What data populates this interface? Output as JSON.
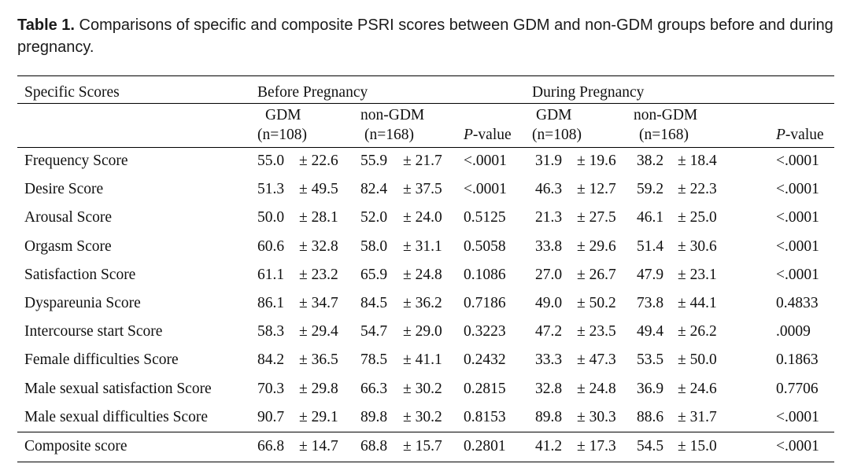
{
  "caption": {
    "label": "Table 1.",
    "text": " Comparisons of specific and composite PSRI scores between GDM and non-GDM groups before and during pregnancy."
  },
  "header": {
    "specific_scores": "Specific Scores",
    "before": "Before Pregnancy",
    "during": "During Pregnancy",
    "gdm": "GDM",
    "non_gdm": "non-GDM",
    "n_gdm": "(n=108)",
    "n_non_gdm": "(n=168)",
    "p_italic": "P",
    "p_rest": "-value"
  },
  "rows": [
    {
      "label": "Frequency Score",
      "b_gdm": "55.0",
      "b_gdm_sd": "± 22.6",
      "b_non": "55.9",
      "b_non_sd": "± 21.7",
      "b_p": "<.0001",
      "d_gdm": "31.9",
      "d_gdm_sd": "± 19.6",
      "d_non": "38.2",
      "d_non_sd": "± 18.4",
      "d_p": "<.0001"
    },
    {
      "label": "Desire  Score",
      "b_gdm": "51.3",
      "b_gdm_sd": "± 49.5",
      "b_non": "82.4",
      "b_non_sd": "± 37.5",
      "b_p": "<.0001",
      "d_gdm": "46.3",
      "d_gdm_sd": "± 12.7",
      "d_non": "59.2",
      "d_non_sd": "± 22.3",
      "d_p": "<.0001"
    },
    {
      "label": "Arousal Score",
      "b_gdm": "50.0",
      "b_gdm_sd": "± 28.1",
      "b_non": "52.0",
      "b_non_sd": "± 24.0",
      "b_p": "0.5125",
      "d_gdm": "21.3",
      "d_gdm_sd": "± 27.5",
      "d_non": "46.1",
      "d_non_sd": "± 25.0",
      "d_p": "<.0001"
    },
    {
      "label": "Orgasm Score",
      "b_gdm": "60.6",
      "b_gdm_sd": "± 32.8",
      "b_non": "58.0",
      "b_non_sd": "± 31.1",
      "b_p": "0.5058",
      "d_gdm": "33.8",
      "d_gdm_sd": "± 29.6",
      "d_non": "51.4",
      "d_non_sd": "± 30.6",
      "d_p": "<.0001"
    },
    {
      "label": "Satisfaction  Score",
      "b_gdm": "61.1",
      "b_gdm_sd": "± 23.2",
      "b_non": "65.9",
      "b_non_sd": "± 24.8",
      "b_p": "0.1086",
      "d_gdm": "27.0",
      "d_gdm_sd": "± 26.7",
      "d_non": "47.9",
      "d_non_sd": "± 23.1",
      "d_p": "<.0001"
    },
    {
      "label": "Dyspareunia  Score",
      "b_gdm": "86.1",
      "b_gdm_sd": "± 34.7",
      "b_non": "84.5",
      "b_non_sd": "± 36.2",
      "b_p": "0.7186",
      "d_gdm": "49.0",
      "d_gdm_sd": "± 50.2",
      "d_non": "73.8",
      "d_non_sd": "± 44.1",
      "d_p": "0.4833"
    },
    {
      "label": "Intercourse start  Score",
      "b_gdm": "58.3",
      "b_gdm_sd": "± 29.4",
      "b_non": "54.7",
      "b_non_sd": "± 29.0",
      "b_p": "0.3223",
      "d_gdm": "47.2",
      "d_gdm_sd": "± 23.5",
      "d_non": "49.4",
      "d_non_sd": "± 26.2",
      "d_p": ".0009"
    },
    {
      "label": "Female difficulties Score",
      "b_gdm": "84.2",
      "b_gdm_sd": "± 36.5",
      "b_non": "78.5",
      "b_non_sd": "± 41.1",
      "b_p": "0.2432",
      "d_gdm": "33.3",
      "d_gdm_sd": "± 47.3",
      "d_non": "53.5",
      "d_non_sd": "± 50.0",
      "d_p": "0.1863"
    },
    {
      "label": "Male sexual satisfaction Score",
      "b_gdm": "70.3",
      "b_gdm_sd": "± 29.8",
      "b_non": "66.3",
      "b_non_sd": "± 30.2",
      "b_p": "0.2815",
      "d_gdm": "32.8",
      "d_gdm_sd": "± 24.8",
      "d_non": "36.9",
      "d_non_sd": "± 24.6",
      "d_p": "0.7706"
    },
    {
      "label": "Male sexual difficulties Score",
      "b_gdm": "90.7",
      "b_gdm_sd": "± 29.1",
      "b_non": "89.8",
      "b_non_sd": "± 30.2",
      "b_p": "0.8153",
      "d_gdm": "89.8",
      "d_gdm_sd": "± 30.3",
      "d_non": "88.6",
      "d_non_sd": "± 31.7",
      "d_p": "<.0001"
    }
  ],
  "composite": {
    "label": "Composite score",
    "b_gdm": "66.8",
    "b_gdm_sd": "± 14.7",
    "b_non": "68.8",
    "b_non_sd": "± 15.7",
    "b_p": "0.2801",
    "d_gdm": "41.2",
    "d_gdm_sd": "± 17.3",
    "d_non": "54.5",
    "d_non_sd": "± 15.0",
    "d_p": "<.0001"
  }
}
